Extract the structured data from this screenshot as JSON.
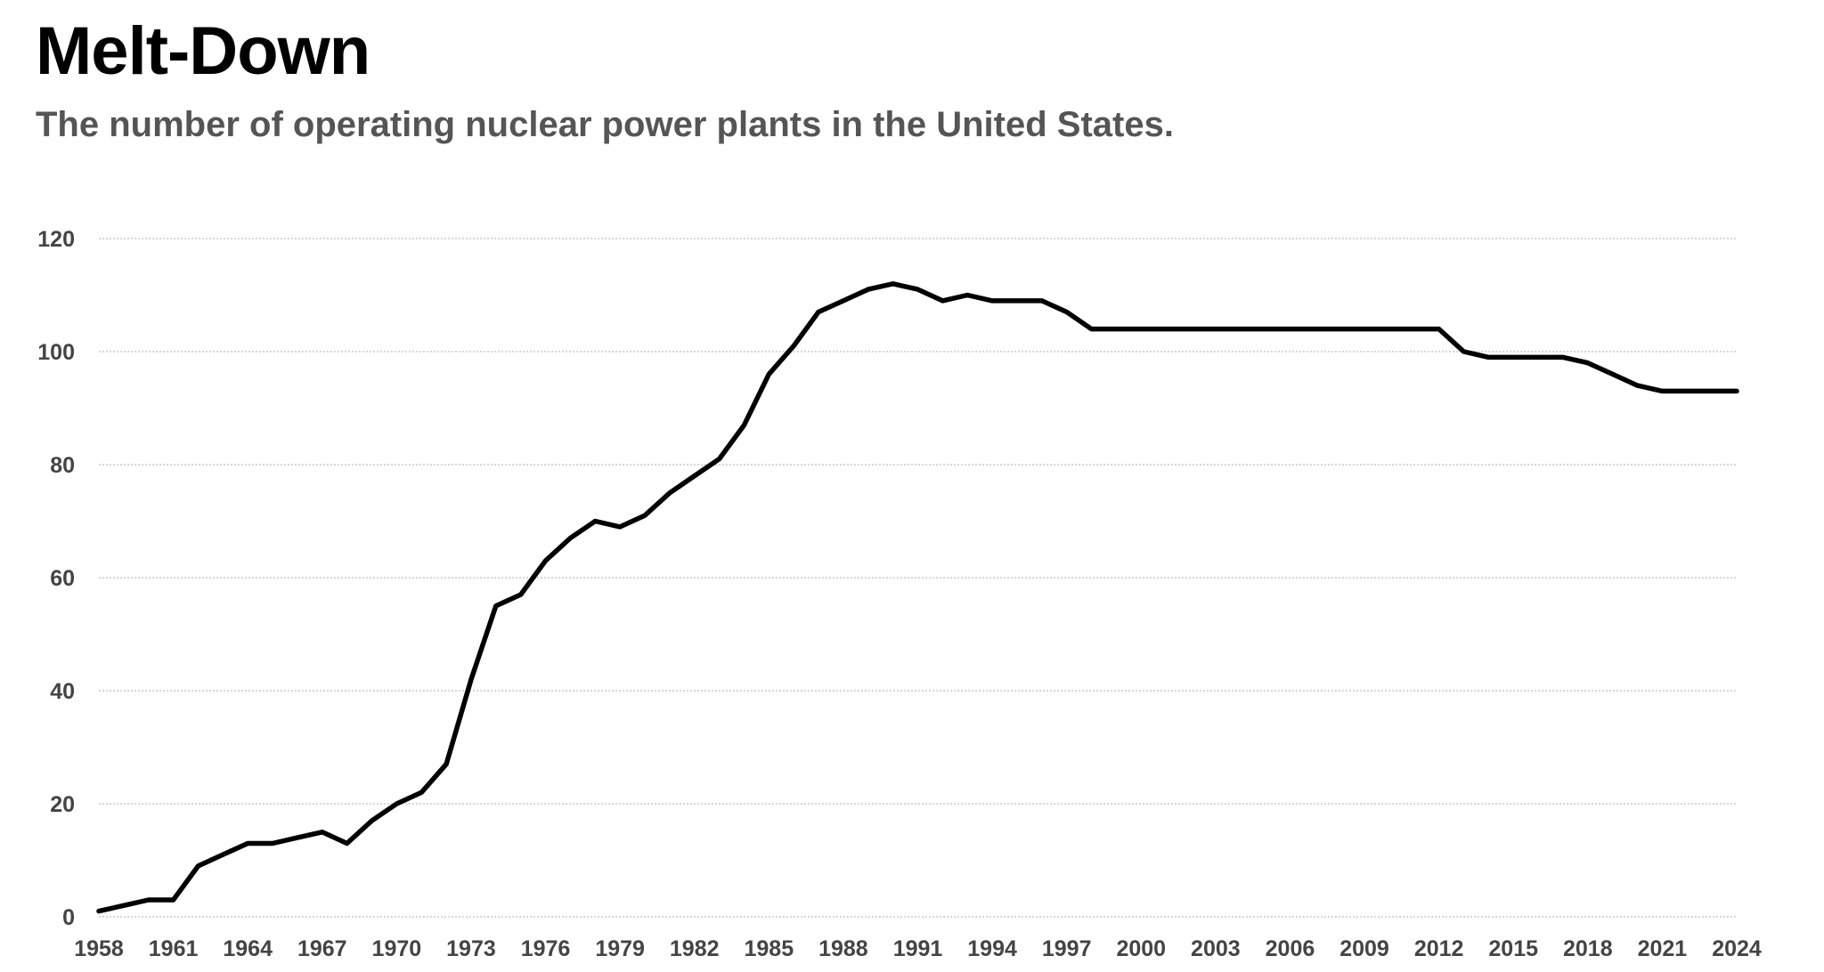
{
  "colors": {
    "line": "#000000",
    "grid": "#c8c8c8",
    "title": "#000000",
    "subtitle": "#555555",
    "ticks": "#444444"
  },
  "chart_data": {
    "type": "line",
    "title": "Melt-Down",
    "subtitle": "The number of operating nuclear power plants in the United States.",
    "xlabel": "",
    "ylabel": "",
    "ylim": [
      0,
      120
    ],
    "yticks": [
      0,
      20,
      40,
      60,
      80,
      100,
      120
    ],
    "xticks": [
      1958,
      1961,
      1964,
      1967,
      1970,
      1973,
      1976,
      1979,
      1982,
      1985,
      1988,
      1991,
      1994,
      1997,
      2000,
      2003,
      2006,
      2009,
      2012,
      2015,
      2018,
      2021,
      2024
    ],
    "grid": true,
    "series": [
      {
        "name": "Operating nuclear power plants",
        "x": [
          1958,
          1959,
          1960,
          1961,
          1962,
          1963,
          1964,
          1965,
          1966,
          1967,
          1968,
          1969,
          1970,
          1971,
          1972,
          1973,
          1974,
          1975,
          1976,
          1977,
          1978,
          1979,
          1980,
          1981,
          1982,
          1983,
          1984,
          1985,
          1986,
          1987,
          1988,
          1989,
          1990,
          1991,
          1992,
          1993,
          1994,
          1995,
          1996,
          1997,
          1998,
          1999,
          2000,
          2001,
          2002,
          2003,
          2004,
          2005,
          2006,
          2007,
          2008,
          2009,
          2010,
          2011,
          2012,
          2013,
          2014,
          2015,
          2016,
          2017,
          2018,
          2019,
          2020,
          2021,
          2022,
          2023,
          2024
        ],
        "values": [
          1,
          2,
          3,
          3,
          9,
          11,
          13,
          13,
          14,
          15,
          13,
          17,
          20,
          22,
          27,
          42,
          55,
          57,
          63,
          67,
          70,
          69,
          71,
          75,
          78,
          81,
          87,
          96,
          101,
          107,
          109,
          111,
          112,
          111,
          109,
          110,
          109,
          109,
          109,
          107,
          104,
          104,
          104,
          104,
          104,
          104,
          104,
          104,
          104,
          104,
          104,
          104,
          104,
          104,
          104,
          100,
          99,
          99,
          99,
          99,
          98,
          96,
          94,
          93,
          93,
          93,
          93
        ]
      }
    ]
  }
}
